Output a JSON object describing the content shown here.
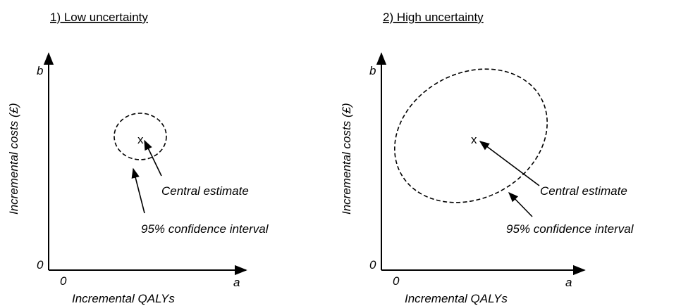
{
  "panels": [
    {
      "title": "1) Low uncertainty",
      "y_label": "Incremental costs (£)",
      "x_label": "Incremental QALYs",
      "y_max_label": "b",
      "x_max_label": "a",
      "y_origin_label": "0",
      "x_origin_label": "0",
      "estimate_marker": "x",
      "estimate_label": "Central estimate",
      "interval_label": "95% confidence interval"
    },
    {
      "title": "2) High uncertainty",
      "y_label": "Incremental costs (£)",
      "x_label": "Incremental QALYs",
      "y_max_label": "b",
      "x_max_label": "a",
      "y_origin_label": "0",
      "x_origin_label": "0",
      "estimate_marker": "x",
      "estimate_label": "Central estimate",
      "interval_label": "95% confidence interval"
    }
  ]
}
